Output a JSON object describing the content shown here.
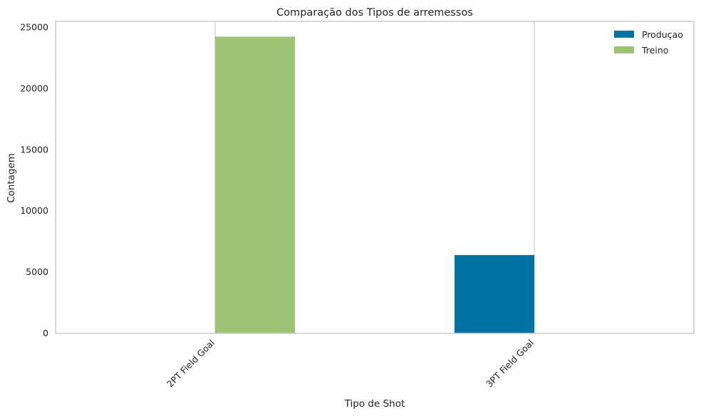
{
  "chart_data": {
    "type": "bar",
    "title": "Comparação dos Tipos de arremessos",
    "xlabel": "Tipo de Shot",
    "ylabel": "Contagem",
    "categories": [
      "2PT Field Goal",
      "3PT Field Goal"
    ],
    "series": [
      {
        "name": "Produçao",
        "color": "#0173a2",
        "values": [
          0,
          6400
        ]
      },
      {
        "name": "Treino",
        "color": "#9dc375",
        "values": [
          24250,
          0
        ]
      }
    ],
    "yticks": [
      0,
      5000,
      10000,
      15000,
      20000,
      25000
    ],
    "ytick_labels": [
      "0",
      "5000",
      "10000",
      "15000",
      "20000",
      "25000"
    ],
    "ylim": [
      0,
      25500
    ],
    "grid": true,
    "legend_position": "top-right",
    "colors": {
      "axes_edge": "#cccccc",
      "grid": "#cccccc"
    }
  }
}
